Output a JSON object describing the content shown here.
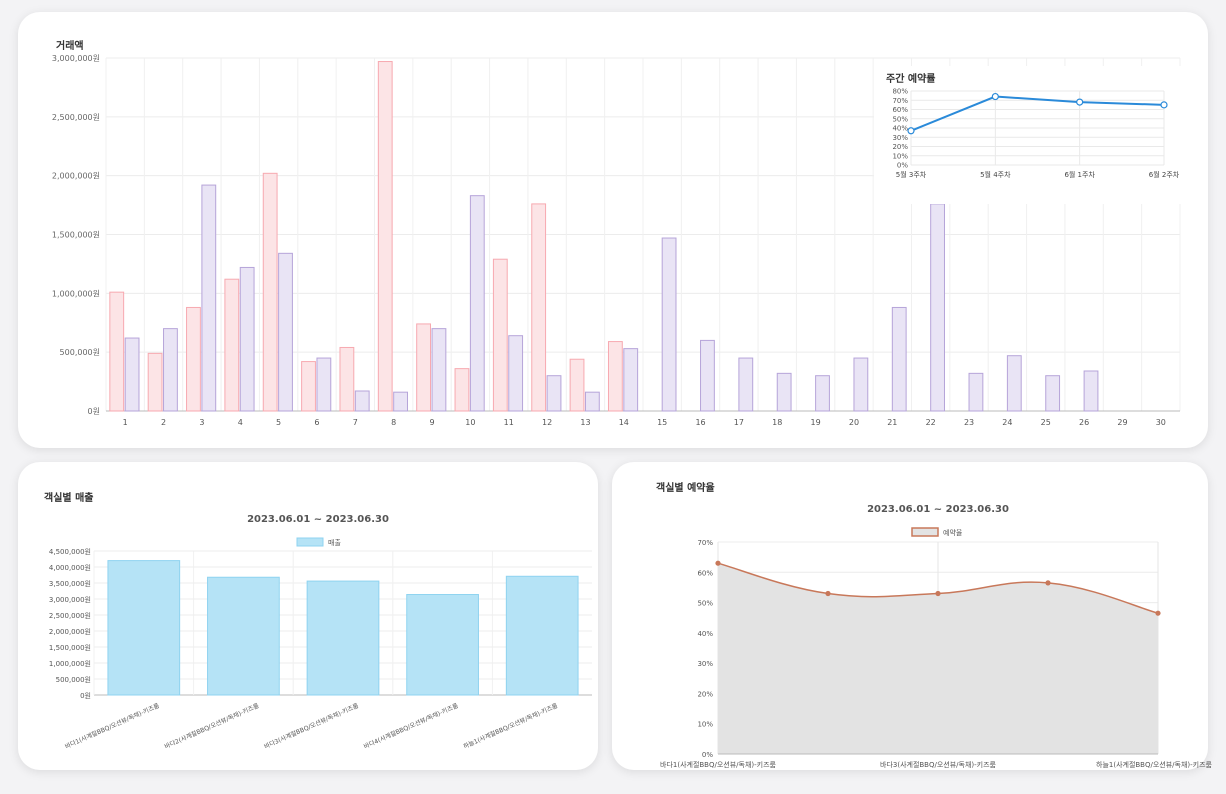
{
  "chart_data": [
    {
      "type": "bar",
      "ylabel": "거래액",
      "ylim": [
        0,
        3000000
      ],
      "yticks": [
        "0원",
        "500,000원",
        "1,000,000원",
        "1,500,000원",
        "2,000,000원",
        "2,500,000원",
        "3,000,000원"
      ],
      "categories": [
        "1",
        "2",
        "3",
        "4",
        "5",
        "6",
        "7",
        "8",
        "9",
        "10",
        "11",
        "12",
        "13",
        "14",
        "15",
        "16",
        "17",
        "18",
        "19",
        "20",
        "21",
        "22",
        "23",
        "24",
        "25",
        "26",
        "29",
        "30"
      ],
      "series": [
        {
          "color": "#f7a9b0",
          "fill": "#fce4e6",
          "values": [
            1010000,
            490000,
            880000,
            1120000,
            2020000,
            420000,
            540000,
            2970000,
            740000,
            360000,
            1290000,
            1760000,
            440000,
            590000,
            0,
            0,
            0,
            0,
            0,
            0,
            0,
            0,
            0,
            0,
            0,
            0,
            0,
            0
          ]
        },
        {
          "color": "#b6a4d9",
          "fill": "#e9e4f5",
          "values": [
            620000,
            700000,
            1920000,
            1220000,
            1340000,
            450000,
            170000,
            160000,
            700000,
            1830000,
            640000,
            300000,
            160000,
            530000,
            1470000,
            600000,
            450000,
            320000,
            300000,
            450000,
            880000,
            1760000,
            320000,
            470000,
            300000,
            340000,
            0,
            0
          ]
        }
      ],
      "grid": true
    },
    {
      "type": "line",
      "title": "주간 예약률",
      "categories": [
        "5월 3주차",
        "5월 4주차",
        "6월 1주차",
        "6월 2주차"
      ],
      "values": [
        37,
        74,
        68,
        65
      ],
      "ylim": [
        0,
        80
      ],
      "yticks": [
        "0%",
        "10%",
        "20%",
        "30%",
        "40%",
        "50%",
        "60%",
        "70%",
        "80%"
      ],
      "color": "#2a8ad9"
    },
    {
      "type": "bar",
      "title": "객실별 매출",
      "subtitle": "2023.06.01 ~ 2023.06.30",
      "legend": "매출",
      "categories": [
        "바다1(사계절BBQ/오션뷰/독채)-키즈룸",
        "바다2(사계절BBQ/오션뷰/독채)-키즈룸",
        "바다3(사계절BBQ/오션뷰/독채)-키즈룸",
        "바다4(사계절BBQ/오션뷰/독채)-키즈룸",
        "하늘1(사계절BBQ/오션뷰/독채)-키즈룸"
      ],
      "values": [
        4200000,
        3680000,
        3560000,
        3140000,
        3710000
      ],
      "ylim": [
        0,
        4500000
      ],
      "yticks": [
        "0원",
        "500,000원",
        "1,000,000원",
        "1,500,000원",
        "2,000,000원",
        "2,500,000원",
        "3,000,000원",
        "3,500,000원",
        "4,000,000원",
        "4,500,000원"
      ],
      "color": "#8fd3f0",
      "fill": "#b5e3f6"
    },
    {
      "type": "area",
      "title": "객실별 예약율",
      "subtitle": "2023.06.01 ~ 2023.06.30",
      "legend": "예약율",
      "categories": [
        "바다1(사계절BBQ/오션뷰/독채)-키즈룸",
        "",
        "바다3(사계절BBQ/오션뷰/독채)-키즈룸",
        "",
        "하늘1(사계절BBQ/오션뷰/독채)-키즈룸"
      ],
      "values": [
        63,
        53,
        53,
        56.5,
        46.5
      ],
      "ylim": [
        0,
        70
      ],
      "yticks": [
        "0%",
        "10%",
        "20%",
        "30%",
        "40%",
        "50%",
        "60%",
        "70%"
      ],
      "color": "#c8785a",
      "fill": "#e3e3e3"
    }
  ]
}
